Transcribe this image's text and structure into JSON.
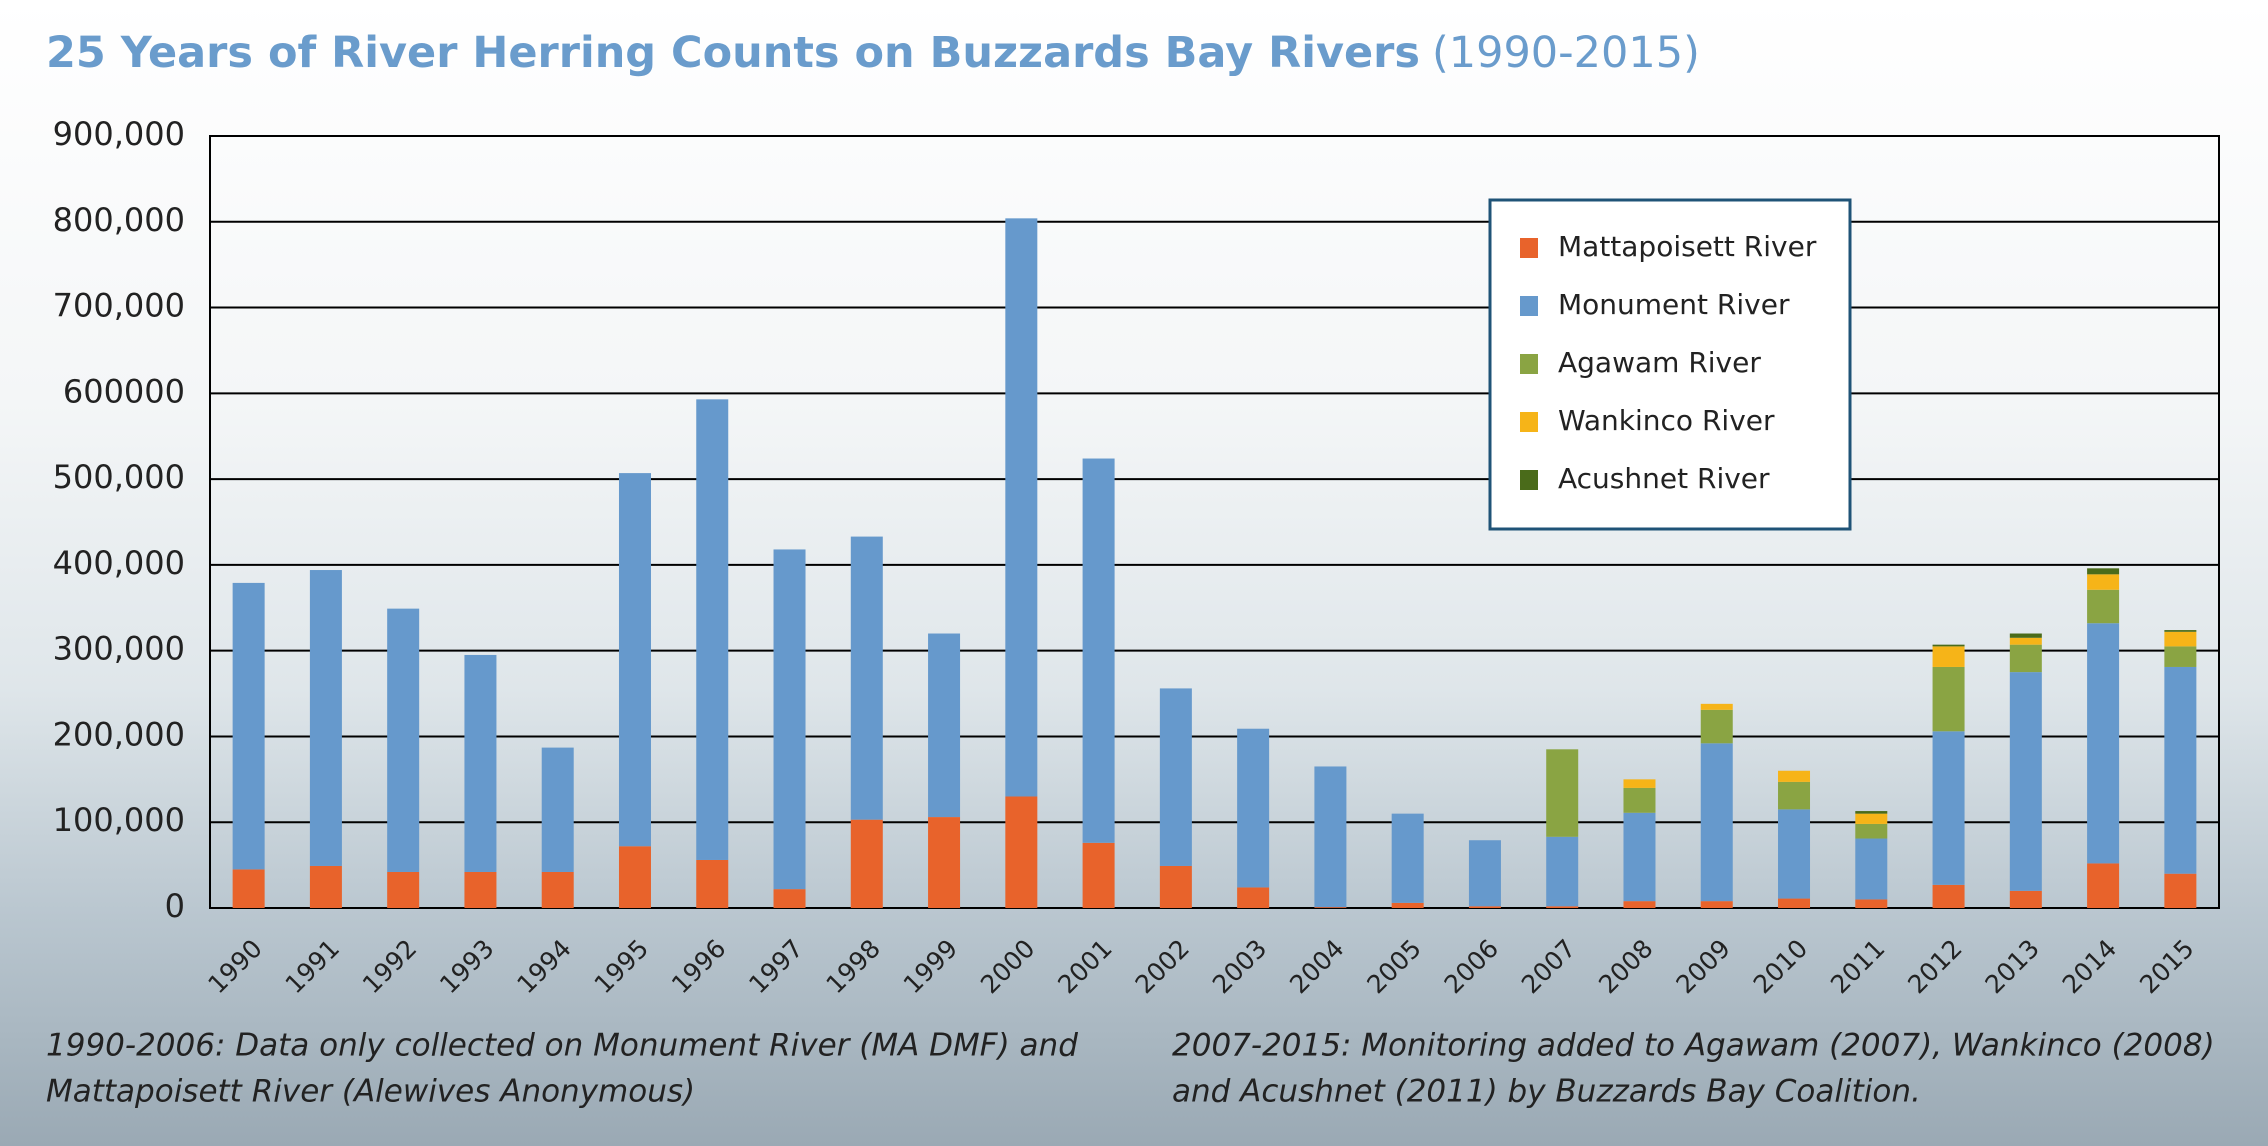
{
  "chart_data": {
    "type": "stacked_bar",
    "title": "25 Years of River Herring Counts on Buzzards Bay Rivers",
    "subtitle": "(1990-2015)",
    "categories": [
      "1990",
      "1991",
      "1992",
      "1993",
      "1994",
      "1995",
      "1996",
      "1997",
      "1998",
      "1999",
      "2000",
      "2001",
      "2002",
      "2003",
      "2004",
      "2005",
      "2006",
      "2007",
      "2008",
      "2009",
      "2010",
      "2011",
      "2012",
      "2013",
      "2014",
      "2015"
    ],
    "series": [
      {
        "name": "Mattapoisett River",
        "color": "#e8632b",
        "values": [
          45000,
          49000,
          42000,
          42000,
          42000,
          72000,
          56000,
          22000,
          103000,
          106000,
          130000,
          76000,
          49000,
          24000,
          1000,
          6000,
          2000,
          2000,
          8000,
          8000,
          11000,
          10000,
          27000,
          20000,
          52000,
          40000
        ]
      },
      {
        "name": "Monument River",
        "color": "#6699cc",
        "values": [
          334000,
          345000,
          307000,
          253000,
          145000,
          435000,
          537000,
          396000,
          330000,
          214000,
          674000,
          448000,
          207000,
          185000,
          164000,
          104000,
          77000,
          81000,
          103000,
          184000,
          104000,
          71000,
          179000,
          255000,
          280000,
          241000
        ]
      },
      {
        "name": "Agawam River",
        "color": "#8aa443",
        "values": [
          null,
          null,
          null,
          null,
          null,
          null,
          null,
          null,
          null,
          null,
          null,
          null,
          null,
          null,
          null,
          null,
          null,
          102000,
          29000,
          39000,
          32000,
          17000,
          75000,
          32000,
          39000,
          24000
        ]
      },
      {
        "name": "Wankinco River",
        "color": "#f6b418",
        "values": [
          null,
          null,
          null,
          null,
          null,
          null,
          null,
          null,
          null,
          null,
          null,
          null,
          null,
          null,
          null,
          null,
          null,
          null,
          10000,
          7000,
          13000,
          12000,
          24000,
          8000,
          18000,
          17000
        ]
      },
      {
        "name": "Acushnet River",
        "color": "#4a6b1a",
        "values": [
          null,
          null,
          null,
          null,
          null,
          null,
          null,
          null,
          null,
          null,
          null,
          null,
          null,
          null,
          null,
          null,
          null,
          null,
          null,
          null,
          null,
          3000,
          2000,
          5000,
          7000,
          2000
        ]
      }
    ],
    "ylim": [
      0,
      900000
    ],
    "yticks": [
      0,
      {
        "value": 100000,
        "label": "100,000"
      },
      {
        "value": 200000,
        "label": "200,000"
      },
      {
        "value": 300000,
        "label": "300,000"
      },
      {
        "value": 400000,
        "label": "400,000"
      },
      {
        "value": 500000,
        "label": "500,000"
      },
      {
        "value": 600000,
        "label": "600000"
      },
      {
        "value": 700000,
        "label": "700,000"
      },
      {
        "value": 800000,
        "label": "800,000"
      },
      {
        "value": 900000,
        "label": "900,000"
      }
    ],
    "grid": true,
    "legend": "upper right",
    "annotations": [
      "1990-2006: Data only collected on Monument River (MA DMF) and",
      "Mattapoisett River (Alewives Anonymous)",
      "2007-2015: Monitoring added to Agawam (2007), Wankinco (2008)",
      "and Acushnet (2011) by Buzzards Bay Coalition."
    ]
  }
}
